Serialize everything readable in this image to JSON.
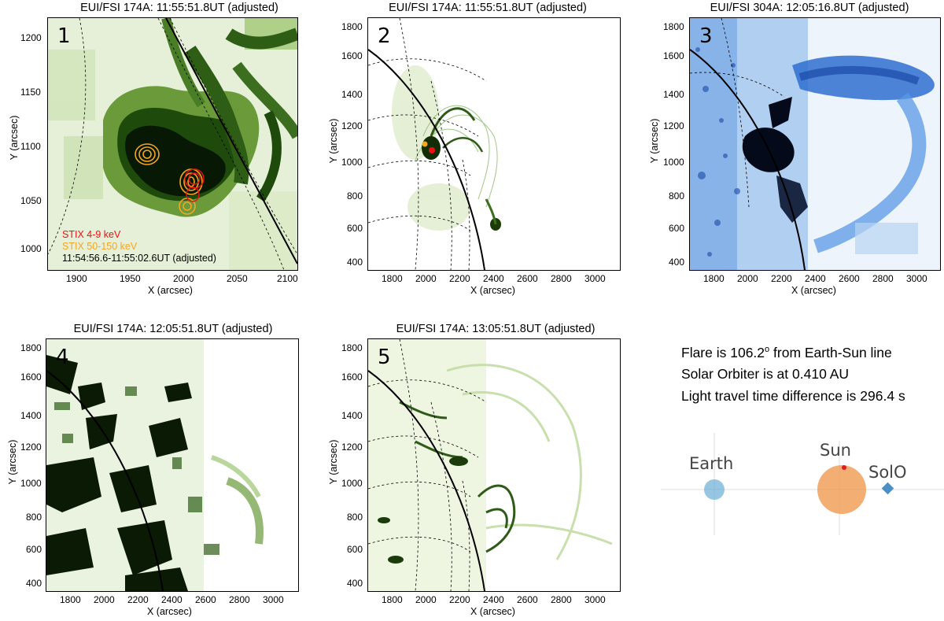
{
  "panels": [
    {
      "num": "1",
      "title": "EUI/FSI 174A:  11:55:51.8UT (adjusted)",
      "xlabel": "X (arcsec)",
      "ylabel": "Y (arcsec)",
      "xticks": [
        "1900",
        "1950",
        "2000",
        "2050",
        "2100"
      ],
      "yticks": [
        "1200",
        "1150",
        "1100",
        "1050",
        "1000"
      ]
    },
    {
      "num": "2",
      "title": "EUI/FSI 174A:  11:55:51.8UT (adjusted)",
      "xlabel": "X (arcsec)",
      "ylabel": "Y (arcsec)",
      "xticks": [
        "1800",
        "2000",
        "2200",
        "2400",
        "2600",
        "2800",
        "3000"
      ],
      "yticks": [
        "1800",
        "1600",
        "1400",
        "1200",
        "1000",
        "800",
        "600",
        "400"
      ]
    },
    {
      "num": "3",
      "title": "EUI/FSI 304A:  12:05:16.8UT (adjusted)",
      "xlabel": "X (arcsec)",
      "ylabel": "Y (arcsec)",
      "xticks": [
        "1800",
        "2000",
        "2200",
        "2400",
        "2600",
        "2800",
        "3000"
      ],
      "yticks": [
        "1800",
        "1600",
        "1400",
        "1200",
        "1000",
        "800",
        "600",
        "400"
      ]
    },
    {
      "num": "4",
      "title": "EUI/FSI 174A:  12:05:51.8UT (adjusted)",
      "xlabel": "X (arcsec)",
      "ylabel": "Y (arcsec)",
      "xticks": [
        "1800",
        "2000",
        "2200",
        "2400",
        "2600",
        "2800",
        "3000"
      ],
      "yticks": [
        "1800",
        "1600",
        "1400",
        "1200",
        "1000",
        "800",
        "600",
        "400"
      ]
    },
    {
      "num": "5",
      "title": "EUI/FSI 174A:  13:05:51.8UT (adjusted)",
      "xlabel": "X (arcsec)",
      "ylabel": "Y (arcsec)",
      "xticks": [
        "1800",
        "2000",
        "2200",
        "2400",
        "2600",
        "2800",
        "3000"
      ],
      "yticks": [
        "1800",
        "1600",
        "1400",
        "1200",
        "1000",
        "800",
        "600",
        "400"
      ]
    }
  ],
  "legend": {
    "stix_low": "STIX 4-9 keV",
    "stix_high": "STIX 50-150 keV",
    "time_range": "11:54:56.6-11:55:02.6UT (adjusted)",
    "colors": {
      "low": "#ee1111",
      "high": "#f5a623"
    }
  },
  "info": {
    "flare_pre": "Flare is 106.2",
    "flare_deg": "o",
    "flare_post": " from Earth-Sun line",
    "orbiter": "Solar Orbiter is at 0.410 AU",
    "light_time": "Light travel time difference is 296.4 s"
  },
  "bodies": {
    "earth": "Earth",
    "sun": "Sun",
    "solo": "SolO",
    "colors": {
      "earth": "#6baed6",
      "sun": "#f0a05a",
      "solo": "#4a90c8",
      "flare": "#e31a1c"
    }
  },
  "colors": {
    "green_dark": "#0d2a05",
    "green_mid": "#4f8a2a",
    "green_light": "#c8e0a8",
    "blue_dark": "#0a2a6a",
    "blue_mid": "#3b7fd8",
    "blue_light": "#b8d4f2"
  }
}
